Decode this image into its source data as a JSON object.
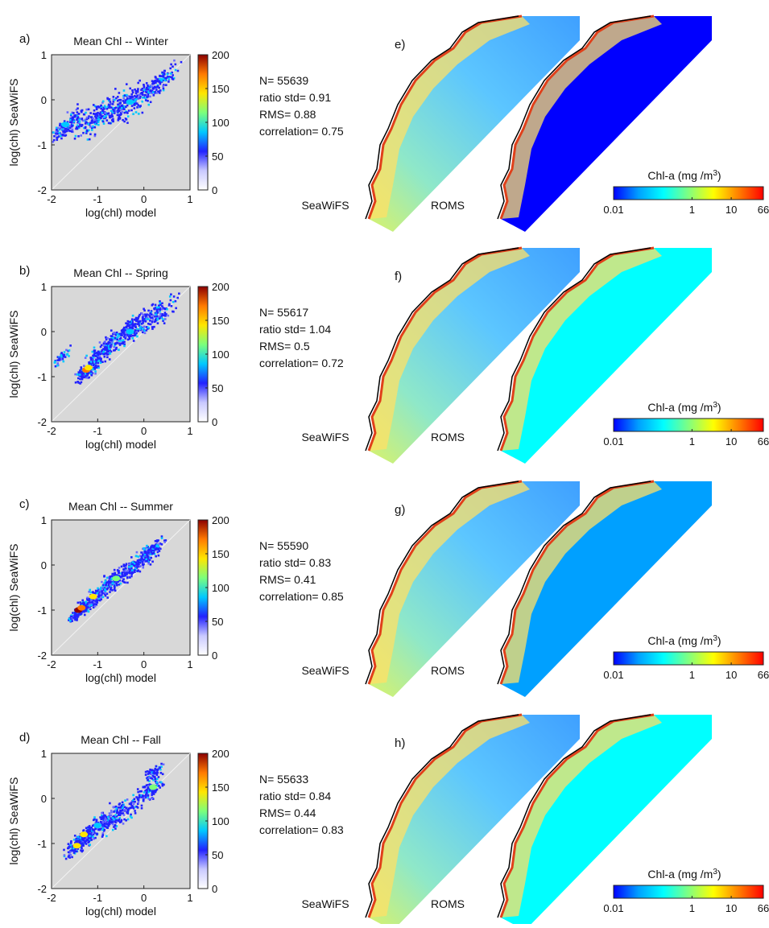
{
  "colors": {
    "density_ramp": [
      "#ffffff",
      "#c9c9ff",
      "#2222ff",
      "#00c8ff",
      "#7cff7c",
      "#ffe600",
      "#ff7a00",
      "#8b0000"
    ],
    "panel_background": "#d8d8d8",
    "chl_ramp": [
      "#0000ff",
      "#00a0ff",
      "#00ffff",
      "#80ff80",
      "#ffff00",
      "#ff8000",
      "#ff0000"
    ]
  },
  "colorbar_chla": {
    "title": "Chl-a (mg /m",
    "title_superscript": "3",
    "title_close": ")",
    "tick_labels": [
      "0.01",
      "1",
      "10",
      "66"
    ],
    "scale": "log"
  },
  "map_labels": {
    "left": "SeaWiFS",
    "right": "ROMS"
  },
  "panels": [
    {
      "letter": "a)",
      "map_letter": "e)",
      "stats": [
        "N= 55639",
        "ratio std= 0.91",
        "RMS= 0.88",
        "correlation= 0.75"
      ],
      "chart_data": {
        "type": "heatmap",
        "title": "Mean Chl -- Winter",
        "xlabel": "log(chl) model",
        "ylabel": "log(chl) SeaWiFS",
        "xlim": [
          -2,
          1
        ],
        "ylim": [
          -2,
          1
        ],
        "x_ticks": [
          "-2",
          "-1",
          "0",
          "1"
        ],
        "y_ticks": [
          "-2",
          "-1",
          "0",
          "1"
        ],
        "colorbar_ticks": [
          "0",
          "50",
          "100",
          "150",
          "200"
        ],
        "colorbar_range": [
          0,
          200
        ]
      },
      "map_data": {
        "right_offshore_level": 0.05
      }
    },
    {
      "letter": "b)",
      "map_letter": "f)",
      "stats": [
        "N= 55617",
        "ratio std= 1.04",
        "RMS= 0.5",
        "correlation= 0.72"
      ],
      "chart_data": {
        "type": "heatmap",
        "title": "Mean Chl -- Spring",
        "xlabel": "log(chl) model",
        "ylabel": "log(chl) SeaWiFS",
        "xlim": [
          -2,
          1
        ],
        "ylim": [
          -2,
          1
        ],
        "x_ticks": [
          "-2",
          "-1",
          "0",
          "1"
        ],
        "y_ticks": [
          "-2",
          "-1",
          "0",
          "1"
        ],
        "colorbar_ticks": [
          "0",
          "50",
          "100",
          "150",
          "200"
        ],
        "colorbar_range": [
          0,
          200
        ]
      },
      "map_data": {
        "right_offshore_level": 0.25
      }
    },
    {
      "letter": "c)",
      "map_letter": "g)",
      "stats": [
        "N= 55590",
        "ratio std= 0.83",
        "RMS= 0.41",
        "correlation= 0.85"
      ],
      "chart_data": {
        "type": "heatmap",
        "title": "Mean Chl -- Summer",
        "xlabel": "log(chl) model",
        "ylabel": "log(chl) SeaWiFS",
        "xlim": [
          -2,
          1
        ],
        "ylim": [
          -2,
          1
        ],
        "x_ticks": [
          "-2",
          "-1",
          "0",
          "1"
        ],
        "y_ticks": [
          "-2",
          "-1",
          "0",
          "1"
        ],
        "colorbar_ticks": [
          "0",
          "50",
          "100",
          "150",
          "200"
        ],
        "colorbar_range": [
          0,
          200
        ]
      },
      "map_data": {
        "right_offshore_level": 0.12
      }
    },
    {
      "letter": "d)",
      "map_letter": "h)",
      "stats": [
        "N= 55633",
        "ratio std= 0.84",
        "RMS= 0.44",
        "correlation= 0.83"
      ],
      "chart_data": {
        "type": "heatmap",
        "title": "Mean Chl -- Fall",
        "xlabel": "log(chl) model",
        "ylabel": "log(chl) SeaWiFS",
        "xlim": [
          -2,
          1
        ],
        "ylim": [
          -2,
          1
        ],
        "x_ticks": [
          "-2",
          "-1",
          "0",
          "1"
        ],
        "y_ticks": [
          "-2",
          "-1",
          "0",
          "1"
        ],
        "colorbar_ticks": [
          "0",
          "50",
          "100",
          "150",
          "200"
        ],
        "colorbar_range": [
          0,
          200
        ]
      },
      "map_data": {
        "right_offshore_level": 0.28
      }
    }
  ]
}
